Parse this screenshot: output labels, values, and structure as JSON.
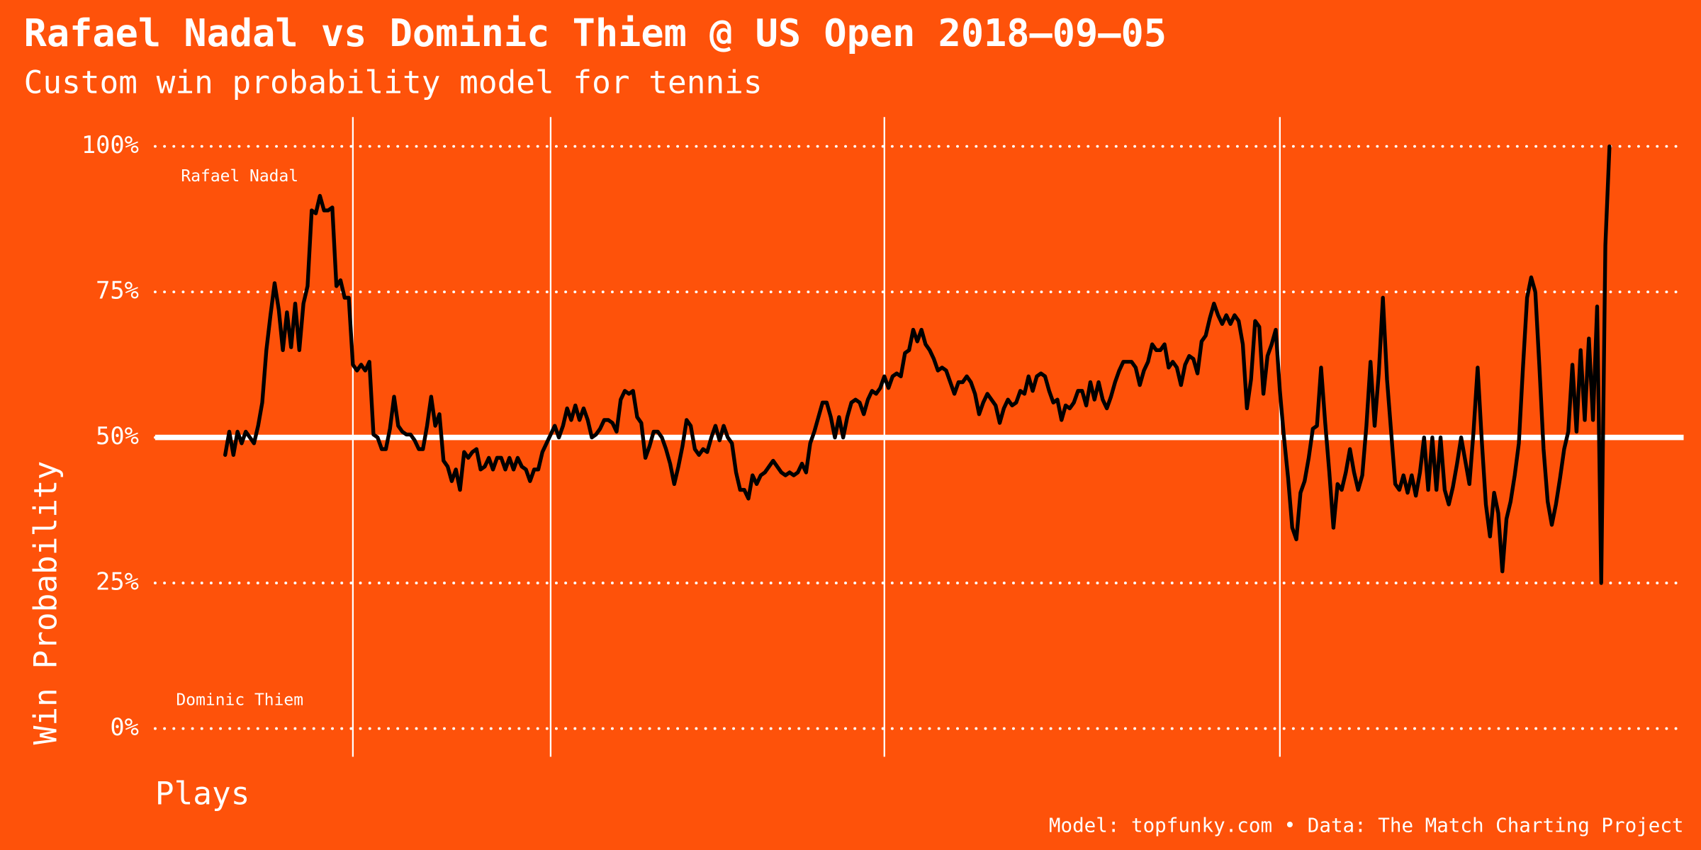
{
  "chart_data": {
    "type": "line",
    "title": "Rafael Nadal vs Dominic Thiem @ US Open 2018–09–05",
    "subtitle": "Custom win probability model for tennis",
    "y_label": "Win Probability",
    "x_label": "Plays",
    "caption": "Model: topfunky.com • Data: The Match Charting Project",
    "annotations": [
      "Rafael Nadal",
      "Dominic Thiem"
    ],
    "color": "#000000",
    "background": "#fe520a",
    "grid": true,
    "reference_line": 50,
    "set_breaks": [
      31,
      79,
      160,
      256
    ],
    "xlim": [
      -17,
      354
    ],
    "ylim": [
      0,
      100
    ],
    "yticks": [
      {
        "value": 0,
        "label": "0%"
      },
      {
        "value": 25,
        "label": "25%"
      },
      {
        "value": 50,
        "label": "50%"
      },
      {
        "value": 75,
        "label": "75%"
      },
      {
        "value": 100,
        "label": "100%"
      }
    ],
    "x": [
      0,
      1,
      2,
      3,
      4,
      5,
      6,
      7,
      8,
      9,
      10,
      11,
      12,
      13,
      14,
      15,
      16,
      17,
      18,
      19,
      20,
      21,
      22,
      23,
      24,
      25,
      26,
      27,
      28,
      29,
      30,
      31,
      32,
      33,
      34,
      35,
      36,
      37,
      38,
      39,
      40,
      41,
      42,
      43,
      44,
      45,
      46,
      47,
      48,
      49,
      50,
      51,
      52,
      53,
      54,
      55,
      56,
      57,
      58,
      59,
      60,
      61,
      62,
      63,
      64,
      65,
      66,
      67,
      68,
      69,
      70,
      71,
      72,
      73,
      74,
      75,
      76,
      77,
      78,
      79,
      80,
      81,
      82,
      83,
      84,
      85,
      86,
      87,
      88,
      89,
      90,
      91,
      92,
      93,
      94,
      95,
      96,
      97,
      98,
      99,
      100,
      101,
      102,
      103,
      104,
      105,
      106,
      107,
      108,
      109,
      110,
      111,
      112,
      113,
      114,
      115,
      116,
      117,
      118,
      119,
      120,
      121,
      122,
      123,
      124,
      125,
      126,
      127,
      128,
      129,
      130,
      131,
      132,
      133,
      134,
      135,
      136,
      137,
      138,
      139,
      140,
      141,
      142,
      143,
      144,
      145,
      146,
      147,
      148,
      149,
      150,
      151,
      152,
      153,
      154,
      155,
      156,
      157,
      158,
      159,
      160,
      161,
      162,
      163,
      164,
      165,
      166,
      167,
      168,
      169,
      170,
      171,
      172,
      173,
      174,
      175,
      176,
      177,
      178,
      179,
      180,
      181,
      182,
      183,
      184,
      185,
      186,
      187,
      188,
      189,
      190,
      191,
      192,
      193,
      194,
      195,
      196,
      197,
      198,
      199,
      200,
      201,
      202,
      203,
      204,
      205,
      206,
      207,
      208,
      209,
      210,
      211,
      212,
      213,
      214,
      215,
      216,
      217,
      218,
      219,
      220,
      221,
      222,
      223,
      224,
      225,
      226,
      227,
      228,
      229,
      230,
      231,
      232,
      233,
      234,
      235,
      236,
      237,
      238,
      239,
      240,
      241,
      242,
      243,
      244,
      245,
      246,
      247,
      248,
      249,
      250,
      251,
      252,
      253,
      254,
      255,
      256,
      257,
      258,
      259,
      260,
      261,
      262,
      263,
      264,
      265,
      266,
      267,
      268,
      269,
      270,
      271,
      272,
      273,
      274,
      275,
      276,
      277,
      278,
      279,
      280,
      281,
      282,
      283,
      284,
      285,
      286,
      287,
      288,
      289,
      290,
      291,
      292,
      293,
      294,
      295,
      296,
      297,
      298,
      299,
      300,
      301,
      302,
      303,
      304,
      305,
      306,
      307,
      308,
      309,
      310,
      311,
      312,
      313,
      314,
      315,
      316,
      317,
      318,
      319,
      320,
      321,
      322,
      323,
      324,
      325,
      326,
      327,
      328,
      329,
      330,
      331,
      332,
      333,
      334,
      335,
      336
    ],
    "values": [
      47,
      51,
      47,
      51,
      49,
      51,
      50,
      49,
      52,
      56,
      65,
      71,
      76.5,
      72,
      65,
      71.5,
      65.5,
      73,
      65,
      73,
      76,
      89,
      88.5,
      91.5,
      89,
      89,
      89.5,
      76,
      77,
      74,
      74,
      62.5,
      61.5,
      62.5,
      61.5,
      63,
      50.5,
      50,
      48,
      48,
      51.5,
      57,
      52,
      51,
      50.5,
      50.5,
      49.5,
      48,
      48,
      52,
      57,
      52,
      54,
      46,
      45,
      42.5,
      44.5,
      41,
      47.5,
      46.5,
      47.5,
      48,
      44.5,
      45,
      46.5,
      44.5,
      46.5,
      46.5,
      44.5,
      46.5,
      44.5,
      46.5,
      45,
      44.5,
      42.5,
      44.5,
      44.5,
      47.5,
      49,
      50.5,
      52,
      50,
      52,
      55,
      53,
      55.5,
      53,
      55,
      53,
      50,
      50.5,
      51.5,
      53,
      53,
      52.5,
      51,
      56.5,
      58,
      57.5,
      58,
      53.5,
      52.5,
      46.5,
      48.5,
      51,
      51,
      50,
      48,
      45.5,
      42,
      45,
      48.5,
      53,
      52,
      48,
      47,
      48,
      47.5,
      50,
      52,
      49.5,
      52,
      50,
      49,
      44,
      41,
      41,
      39.5,
      43.5,
      42,
      43.5,
      44,
      45,
      46,
      45,
      44,
      43.5,
      44,
      43.5,
      44,
      45.5,
      44,
      49,
      51,
      53.5,
      56,
      56,
      53.5,
      50,
      53.5,
      50,
      53.5,
      56,
      56.5,
      56,
      54,
      56.5,
      58,
      57.5,
      58.5,
      60.5,
      58.5,
      60.5,
      61,
      60.5,
      64.5,
      65,
      68.5,
      66.5,
      68.5,
      66,
      65,
      63.5,
      61.5,
      62,
      61.5,
      59.5,
      57.5,
      59.5,
      59.5,
      60.5,
      59.5,
      57.5,
      54,
      56,
      57.5,
      56.5,
      55.5,
      52.5,
      55,
      56.5,
      55.5,
      56,
      58,
      57.5,
      60.5,
      58,
      60.5,
      61,
      60.5,
      58,
      56,
      56.5,
      53,
      55.5,
      55,
      56,
      58,
      58,
      55.5,
      59.5,
      56.5,
      59.5,
      56.5,
      55,
      57,
      59.5,
      61.5,
      63,
      63,
      63,
      62,
      59,
      61.5,
      63,
      66,
      65,
      65,
      66,
      62,
      63,
      62,
      59,
      62.5,
      64,
      63.5,
      61,
      66.5,
      67.5,
      70.5,
      73,
      71,
      69.5,
      71,
      69.5,
      71,
      70,
      66,
      55,
      60,
      70,
      69,
      57.5,
      64,
      66,
      68.5,
      58,
      50,
      43,
      34.5,
      32.5,
      40.5,
      42.5,
      46.5,
      51.5,
      52,
      62,
      52.5,
      44,
      34.5,
      42,
      41,
      44,
      48,
      44,
      41,
      43.5,
      52,
      63,
      52,
      61,
      74,
      60,
      51,
      42,
      41,
      43.5,
      40.5,
      43.5,
      40,
      44,
      50,
      41,
      50,
      41,
      50,
      41,
      38.5,
      41.5,
      45.5,
      50,
      46,
      42,
      51,
      62,
      49.5,
      38.5,
      33,
      40.5,
      37,
      27,
      36,
      39,
      43.5,
      49,
      62,
      74,
      77.5,
      75,
      62,
      48,
      39,
      35,
      38.5,
      43,
      48,
      51,
      62.5,
      51,
      65,
      53,
      67,
      53,
      72.5,
      25,
      83,
      100
    ]
  }
}
